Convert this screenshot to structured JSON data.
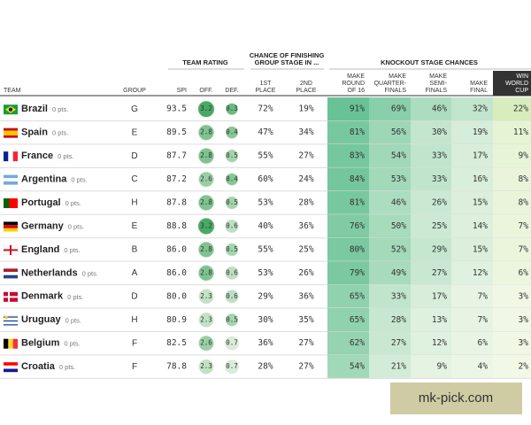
{
  "header": {
    "group_labels": {
      "rating": "TEAM RATING",
      "group_stage": [
        "CHANCE OF FINISHING",
        "GROUP STAGE IN ..."
      ],
      "knockout": "KNOCKOUT STAGE CHANCES"
    },
    "columns": {
      "team": [
        "TEAM"
      ],
      "group": [
        "GROUP"
      ],
      "spi": [
        "SPI"
      ],
      "off": [
        "OFF."
      ],
      "def": [
        "DEF."
      ],
      "first": [
        "1ST",
        "PLACE"
      ],
      "second": [
        "2ND",
        "PLACE"
      ],
      "r16": [
        "MAKE",
        "ROUND",
        "OF 16"
      ],
      "qf": [
        "MAKE",
        "QUARTER-",
        "FINALS"
      ],
      "sf": [
        "MAKE",
        "SEMI-",
        "FINALS"
      ],
      "final": [
        "MAKE",
        "FINAL"
      ],
      "win": [
        "WIN",
        "WORLD",
        "CUP"
      ]
    }
  },
  "table": {
    "rows": [
      {
        "team": "Brazil",
        "pts": "0 pts.",
        "group": "G",
        "spi": "93.5",
        "off": "3.2",
        "def": "0.3",
        "first": "72%",
        "second": "19%",
        "r16": "91%",
        "qf": "69%",
        "sf": "46%",
        "final": "32%",
        "win": "22%"
      },
      {
        "team": "Spain",
        "pts": "0 pts.",
        "group": "E",
        "spi": "89.5",
        "off": "2.8",
        "def": "0.4",
        "first": "47%",
        "second": "34%",
        "r16": "81%",
        "qf": "56%",
        "sf": "30%",
        "final": "19%",
        "win": "11%"
      },
      {
        "team": "France",
        "pts": "0 pts.",
        "group": "D",
        "spi": "87.7",
        "off": "2.8",
        "def": "0.5",
        "first": "55%",
        "second": "27%",
        "r16": "83%",
        "qf": "54%",
        "sf": "33%",
        "final": "17%",
        "win": "9%"
      },
      {
        "team": "Argentina",
        "pts": "0 pts.",
        "group": "C",
        "spi": "87.2",
        "off": "2.6",
        "def": "0.4",
        "first": "60%",
        "second": "24%",
        "r16": "84%",
        "qf": "53%",
        "sf": "33%",
        "final": "16%",
        "win": "8%"
      },
      {
        "team": "Portugal",
        "pts": "0 pts.",
        "group": "H",
        "spi": "87.8",
        "off": "2.8",
        "def": "0.5",
        "first": "53%",
        "second": "28%",
        "r16": "81%",
        "qf": "46%",
        "sf": "26%",
        "final": "15%",
        "win": "8%"
      },
      {
        "team": "Germany",
        "pts": "0 pts.",
        "group": "E",
        "spi": "88.8",
        "off": "3.2",
        "def": "0.6",
        "first": "40%",
        "second": "36%",
        "r16": "76%",
        "qf": "50%",
        "sf": "25%",
        "final": "14%",
        "win": "7%"
      },
      {
        "team": "England",
        "pts": "0 pts.",
        "group": "B",
        "spi": "86.0",
        "off": "2.8",
        "def": "0.5",
        "first": "55%",
        "second": "25%",
        "r16": "80%",
        "qf": "52%",
        "sf": "29%",
        "final": "15%",
        "win": "7%"
      },
      {
        "team": "Netherlands",
        "pts": "0 pts.",
        "group": "A",
        "spi": "86.0",
        "off": "2.8",
        "def": "0.6",
        "first": "53%",
        "second": "26%",
        "r16": "79%",
        "qf": "49%",
        "sf": "27%",
        "final": "12%",
        "win": "6%"
      },
      {
        "team": "Denmark",
        "pts": "0 pts.",
        "group": "D",
        "spi": "80.0",
        "off": "2.3",
        "def": "0.6",
        "first": "29%",
        "second": "36%",
        "r16": "65%",
        "qf": "33%",
        "sf": "17%",
        "final": "7%",
        "win": "3%"
      },
      {
        "team": "Uruguay",
        "pts": "0 pts.",
        "group": "H",
        "spi": "80.9",
        "off": "2.3",
        "def": "0.5",
        "first": "30%",
        "second": "35%",
        "r16": "65%",
        "qf": "28%",
        "sf": "13%",
        "final": "7%",
        "win": "3%"
      },
      {
        "team": "Belgium",
        "pts": "0 pts.",
        "group": "F",
        "spi": "82.5",
        "off": "2.6",
        "def": "0.7",
        "first": "36%",
        "second": "27%",
        "r16": "62%",
        "qf": "27%",
        "sf": "12%",
        "final": "6%",
        "win": "3%"
      },
      {
        "team": "Croatia",
        "pts": "0 pts.",
        "group": "F",
        "spi": "78.8",
        "off": "2.3",
        "def": "0.7",
        "first": "28%",
        "second": "27%",
        "r16": "54%",
        "qf": "21%",
        "sf": "9%",
        "final": "4%",
        "win": "2%"
      }
    ]
  },
  "watermark": "mk-pick.com"
}
